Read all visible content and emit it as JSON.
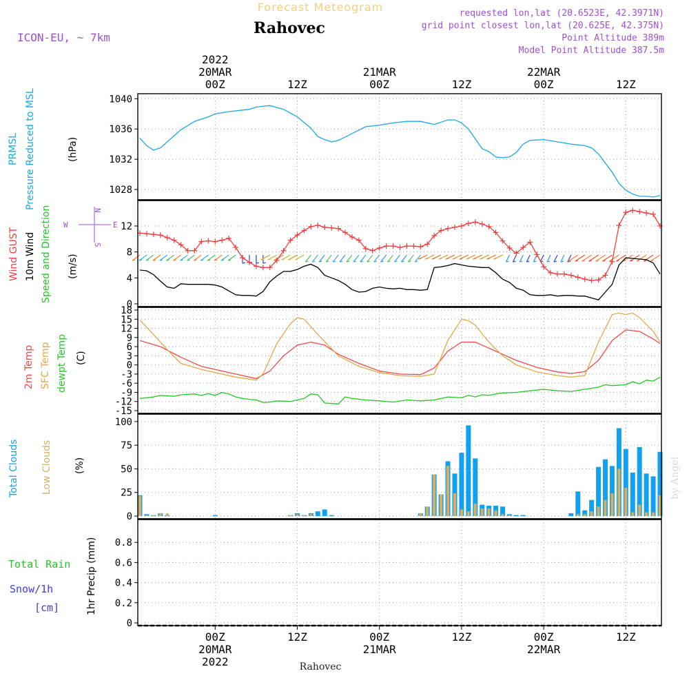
{
  "header": {
    "title": "Forecast Meteogram",
    "location": "Rahovec",
    "model": "ICON-EU,  ~ 7km",
    "requested": "requested lon,lat (20.6523E, 42.3971N)",
    "grid_point": "grid point closest lon,lat (20.625E, 42.375N)",
    "point_altitude": "Point Altitude 389m",
    "model_altitude": "Model Point Altitude 387.5m"
  },
  "footer": {
    "location": "Rahovec",
    "watermark": "by Angel"
  },
  "time_axis": {
    "top_labels": [
      {
        "t": 0,
        "lines": [
          "2022",
          "20MAR",
          "00Z"
        ]
      },
      {
        "t": 12,
        "lines": [
          "12Z"
        ]
      },
      {
        "t": 24,
        "lines": [
          "21MAR",
          "00Z"
        ]
      },
      {
        "t": 36,
        "lines": [
          "12Z"
        ]
      },
      {
        "t": 48,
        "lines": [
          "22MAR",
          "00Z"
        ]
      },
      {
        "t": 60,
        "lines": [
          "12Z"
        ]
      }
    ],
    "bottom_labels": [
      {
        "t": 0,
        "lines": [
          "00Z",
          "20MAR",
          "2022"
        ]
      },
      {
        "t": 12,
        "lines": [
          "12Z"
        ]
      },
      {
        "t": 24,
        "lines": [
          "00Z",
          "21MAR"
        ]
      },
      {
        "t": 36,
        "lines": [
          "12Z"
        ]
      },
      {
        "t": 48,
        "lines": [
          "00Z",
          "22MAR"
        ]
      },
      {
        "t": 60,
        "lines": [
          "12Z"
        ]
      }
    ]
  },
  "panel_labels": {
    "pressure": [
      "PRMSL",
      "Pressure Reduced to MSL",
      "(hPa)"
    ],
    "wind": [
      "Wind GUST",
      "10m Wind",
      "Speed and Direction",
      "(m/s)"
    ],
    "compass": [
      "N",
      "W",
      "E",
      "S"
    ],
    "temp": [
      "2m Temp",
      "SFC Temp",
      "dewpt Temp",
      "(C)"
    ],
    "clouds": [
      "Total Clouds",
      "Low Clouds",
      "(%)"
    ],
    "precip": [
      "Total  Rain",
      "Snow/1h",
      "[cm]",
      "1hr Precip (mm)"
    ]
  },
  "colors": {
    "pressure": "#1aa7e8",
    "gust": "#f03c3c",
    "wind": "#000000",
    "temp2m": "#f04848",
    "sfc": "#e0a848",
    "dewpt": "#22c822",
    "total_clouds": "#12a0f0",
    "low_clouds": "#d8b060",
    "rain": "#22c822",
    "snow": "#3a3af0",
    "annotation": "#a04ed8",
    "title": "#f5cf78"
  },
  "chart_data": [
    {
      "type": "line",
      "panel": "pressure",
      "ylabel": "(hPa)",
      "ylim": [
        1027,
        1040.3
      ],
      "yticks": [
        1028,
        1032,
        1036,
        1040
      ],
      "series": [
        {
          "name": "PRMSL",
          "x": [
            -11,
            -10,
            -9,
            -8,
            -7,
            -5,
            -3,
            -1,
            0,
            2,
            4,
            5,
            6,
            8,
            10,
            12,
            14,
            15,
            16,
            17,
            18,
            20,
            22,
            24,
            26,
            28,
            30,
            32,
            34,
            35,
            36,
            37,
            38,
            39,
            40,
            41,
            42,
            43,
            44,
            45,
            46,
            48,
            50,
            52,
            54,
            55,
            56,
            57,
            58,
            59,
            60,
            61,
            62,
            63,
            64,
            65
          ],
          "values": [
            1034.8,
            1033.8,
            1033.2,
            1033.5,
            1034.3,
            1035.9,
            1037.0,
            1037.6,
            1038.0,
            1038.3,
            1038.5,
            1038.6,
            1038.9,
            1039.1,
            1038.6,
            1037.6,
            1036.1,
            1035.0,
            1034.6,
            1034.3,
            1034.5,
            1035.4,
            1036.3,
            1036.5,
            1036.8,
            1037.0,
            1037.0,
            1036.6,
            1037.2,
            1037.2,
            1036.8,
            1036.0,
            1034.7,
            1033.4,
            1033.0,
            1032.3,
            1032.2,
            1032.3,
            1032.9,
            1034.0,
            1034.5,
            1034.6,
            1034.3,
            1034.0,
            1033.8,
            1033.5,
            1032.7,
            1031.5,
            1030.3,
            1028.8,
            1027.9,
            1027.4,
            1027.1,
            1027.1,
            1027.0,
            1027.2
          ]
        }
      ]
    },
    {
      "type": "line",
      "panel": "wind",
      "ylabel": "(m/s)",
      "ylim": [
        0,
        15.5
      ],
      "yticks": [
        0,
        4,
        8,
        12
      ],
      "series": [
        {
          "name": "Wind GUST",
          "x": [
            -11,
            -10,
            -9,
            -8,
            -7,
            -6,
            -5,
            -4,
            -3,
            -2,
            -1,
            0,
            1,
            2,
            3,
            4,
            5,
            6,
            7,
            8,
            9,
            10,
            11,
            12,
            13,
            14,
            15,
            16,
            17,
            18,
            19,
            20,
            21,
            22,
            23,
            24,
            25,
            26,
            27,
            28,
            29,
            30,
            31,
            32,
            33,
            34,
            35,
            36,
            37,
            38,
            39,
            40,
            41,
            42,
            43,
            44,
            45,
            46,
            47,
            48,
            49,
            50,
            51,
            52,
            53,
            54,
            55,
            56,
            57,
            58,
            59,
            60,
            61,
            62,
            63,
            64,
            65
          ],
          "values": [
            10.9,
            10.8,
            10.7,
            10.6,
            10.2,
            9.8,
            9.1,
            8.2,
            8.2,
            9.6,
            9.7,
            9.6,
            9.8,
            10.1,
            8.7,
            7.1,
            6.4,
            5.8,
            5.6,
            5.6,
            6.7,
            8.2,
            9.8,
            10.6,
            11.3,
            11.9,
            12.1,
            11.8,
            11.7,
            11.6,
            11.0,
            10.3,
            9.8,
            8.5,
            8.2,
            8.6,
            8.9,
            8.9,
            8.7,
            8.9,
            8.9,
            8.8,
            9.2,
            10.5,
            11.3,
            11.6,
            11.8,
            12.0,
            12.4,
            12.6,
            12.3,
            11.9,
            11.0,
            9.7,
            8.6,
            7.8,
            8.7,
            9.5,
            7.6,
            5.7,
            4.8,
            4.6,
            4.6,
            4.4,
            4.1,
            3.8,
            3.6,
            3.7,
            4.4,
            6.5,
            12.1,
            14.1,
            14.4,
            14.2,
            14.0,
            13.8,
            12.0
          ]
        },
        {
          "name": "10m Wind",
          "x": [
            -11,
            -10,
            -9,
            -8,
            -7,
            -6,
            -5,
            -4,
            -3,
            -2,
            -1,
            0,
            1,
            2,
            3,
            4,
            5,
            6,
            7,
            8,
            9,
            10,
            11,
            12,
            13,
            14,
            15,
            16,
            17,
            18,
            19,
            20,
            21,
            22,
            23,
            24,
            25,
            26,
            27,
            28,
            29,
            30,
            31,
            32,
            33,
            34,
            35,
            36,
            37,
            38,
            39,
            40,
            41,
            42,
            43,
            44,
            45,
            46,
            47,
            48,
            49,
            50,
            51,
            52,
            53,
            54,
            55,
            56,
            57,
            58,
            59,
            60,
            61,
            62,
            63,
            64,
            65
          ],
          "values": [
            5.2,
            5.1,
            4.5,
            3.5,
            2.6,
            2.4,
            3.1,
            3.0,
            3.0,
            3.0,
            3.0,
            2.9,
            2.6,
            2.0,
            1.4,
            1.3,
            1.3,
            1.2,
            1.9,
            3.4,
            4.3,
            5.0,
            5.0,
            5.3,
            5.8,
            6.1,
            5.6,
            4.4,
            4.0,
            3.6,
            3.0,
            2.2,
            1.8,
            1.9,
            2.4,
            2.6,
            2.4,
            2.3,
            2.4,
            2.2,
            2.2,
            2.1,
            2.2,
            5.6,
            5.7,
            5.9,
            6.2,
            6.0,
            5.8,
            5.7,
            5.6,
            5.6,
            4.8,
            3.8,
            3.3,
            2.4,
            2.1,
            1.4,
            1.3,
            1.3,
            1.4,
            1.2,
            1.3,
            1.3,
            1.2,
            1.2,
            0.9,
            0.6,
            1.8,
            3.0,
            6.0,
            7.1,
            7.0,
            6.9,
            6.8,
            6.3,
            4.6
          ]
        }
      ]
    },
    {
      "type": "line",
      "panel": "temperature",
      "ylabel": "(C)",
      "ylim": [
        -15,
        18
      ],
      "yticks": [
        -15,
        -12,
        -9,
        -6,
        -3,
        0,
        3,
        6,
        9,
        12,
        15,
        18
      ],
      "series": [
        {
          "name": "2m Temp",
          "x": [
            -11,
            -8,
            -5,
            -2,
            0,
            3,
            6,
            8,
            10,
            12,
            14,
            16,
            18,
            21,
            24,
            27,
            30,
            32,
            34,
            36,
            38,
            40,
            42,
            44,
            47,
            50,
            52,
            54,
            56,
            58,
            60,
            62,
            64,
            65
          ],
          "values": [
            8.0,
            6.0,
            2.5,
            -0.5,
            -1.5,
            -3.0,
            -4.5,
            -2.0,
            3.0,
            6.5,
            7.5,
            6.5,
            3.5,
            0.5,
            -2.0,
            -3.0,
            -3.2,
            -1.0,
            4.5,
            7.5,
            7.5,
            5.5,
            3.5,
            1.5,
            -0.8,
            -2.3,
            -2.8,
            -2.2,
            1.5,
            8.0,
            11.5,
            11.0,
            8.5,
            7.0
          ]
        },
        {
          "name": "SFC Temp",
          "x": [
            -11,
            -9,
            -7,
            -5,
            -2,
            0,
            3,
            6,
            7,
            9,
            11,
            12,
            13,
            15,
            18,
            21,
            24,
            27,
            30,
            32,
            34,
            36,
            37,
            38,
            40,
            42,
            44,
            47,
            50,
            52,
            54,
            56,
            58,
            59,
            60,
            61,
            62,
            64,
            65
          ],
          "values": [
            14.7,
            10.0,
            5.0,
            0.5,
            -1.5,
            -2.5,
            -4.0,
            -5.0,
            -3.0,
            7.0,
            13.5,
            15.5,
            15.0,
            10.0,
            3.0,
            -0.5,
            -2.5,
            -3.5,
            -3.8,
            -3.0,
            8.0,
            15.0,
            14.5,
            13.0,
            7.5,
            3.0,
            0.0,
            -2.3,
            -3.5,
            -4.0,
            -3.5,
            7.5,
            16.5,
            17.0,
            16.5,
            17.0,
            15.5,
            11.0,
            7.5
          ]
        },
        {
          "name": "dewpt Temp",
          "x": [
            -11,
            -9,
            -8,
            -6,
            -5,
            -3,
            -2,
            -1,
            0,
            1,
            2,
            3,
            4,
            5,
            6,
            7,
            8,
            9,
            11,
            13,
            14,
            15,
            16,
            18,
            19,
            20,
            22,
            24,
            26,
            28,
            30,
            32,
            34,
            36,
            37,
            38,
            39,
            40,
            41,
            42,
            44,
            46,
            48,
            50,
            52,
            54,
            56,
            57,
            58,
            60,
            61,
            62,
            63,
            64,
            65
          ],
          "values": [
            -11.0,
            -10.5,
            -10.0,
            -10.3,
            -9.8,
            -9.5,
            -10.0,
            -9.4,
            -10.0,
            -9.0,
            -9.5,
            -10.5,
            -11.0,
            -11.3,
            -11.5,
            -12.3,
            -12.2,
            -11.8,
            -12.0,
            -11.0,
            -9.5,
            -9.8,
            -12.5,
            -12.8,
            -10.5,
            -11.0,
            -11.5,
            -11.8,
            -12.2,
            -11.5,
            -11.8,
            -11.5,
            -10.5,
            -10.8,
            -10.0,
            -10.5,
            -9.8,
            -10.0,
            -9.5,
            -9.2,
            -9.0,
            -8.5,
            -8.0,
            -8.5,
            -8.7,
            -8.0,
            -7.3,
            -6.5,
            -6.8,
            -6.5,
            -5.5,
            -6.2,
            -5.0,
            -5.3,
            -4.0
          ]
        }
      ]
    },
    {
      "type": "bar",
      "panel": "clouds",
      "ylabel": "(%)",
      "ylim": [
        0,
        105
      ],
      "yticks": [
        0,
        25,
        50,
        75,
        100
      ],
      "series": [
        {
          "name": "Total Clouds",
          "x": [
            -11,
            -10,
            -9,
            -8,
            -7,
            0,
            11,
            12,
            13,
            14,
            15,
            16,
            17,
            30,
            31,
            32,
            33,
            34,
            35,
            36,
            37,
            38,
            39,
            40,
            41,
            42,
            43,
            44,
            45,
            52,
            53,
            54,
            55,
            56,
            57,
            58,
            59,
            60,
            61,
            62,
            63,
            64,
            65
          ],
          "values": [
            22,
            2,
            1,
            3,
            1,
            1,
            1,
            3,
            1,
            3,
            5,
            7,
            1,
            3,
            10,
            44,
            23,
            58,
            45,
            67,
            96,
            61,
            12,
            11,
            11,
            10,
            2,
            1,
            1,
            3,
            26,
            6,
            17,
            52,
            60,
            53,
            93,
            71,
            46,
            73,
            45,
            42,
            68
          ]
        },
        {
          "name": "Low Clouds",
          "x": [
            -11,
            -10,
            -9,
            -8,
            -7,
            11,
            12,
            13,
            14,
            30,
            31,
            32,
            33,
            34,
            35,
            36,
            37,
            38,
            39,
            40,
            41,
            42,
            43,
            53,
            54,
            55,
            56,
            57,
            58,
            59,
            60,
            61,
            62,
            63,
            64,
            65
          ],
          "values": [
            21,
            1,
            1,
            3,
            3,
            1,
            2,
            1,
            2,
            3,
            10,
            44,
            23,
            53,
            24,
            7,
            5,
            13,
            8,
            8,
            6,
            2,
            1,
            2,
            2,
            5,
            10,
            17,
            24,
            50,
            30,
            4,
            12,
            4,
            4,
            22
          ]
        }
      ]
    },
    {
      "type": "bar",
      "panel": "precip",
      "ylabel": "1hr Precip (mm)",
      "ylim": [
        0,
        1
      ],
      "yticks": [
        0,
        0.2,
        0.4,
        0.6,
        0.8
      ],
      "series": []
    }
  ]
}
